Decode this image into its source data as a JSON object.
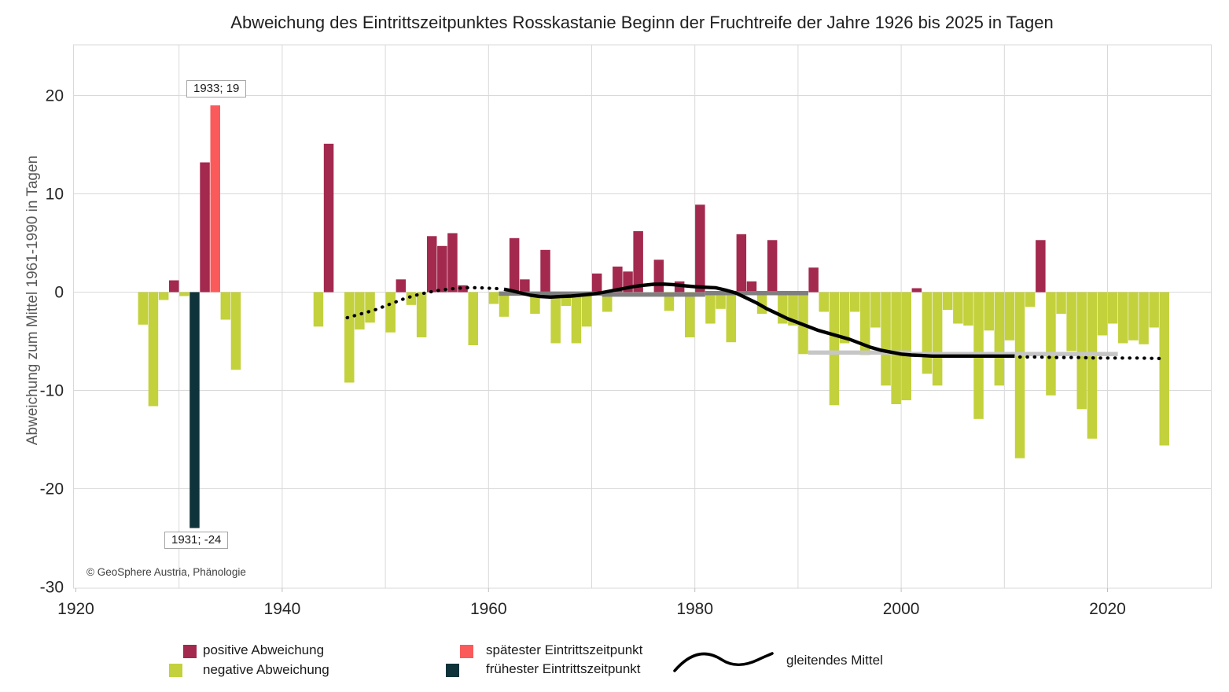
{
  "header": {
    "title": "Abweichung des Eintrittszeitpunktes Rosskastanie Beginn der Fruchtreife der Jahre 1926 bis 2025 in Tagen"
  },
  "copyright": "© GeoSphere Austria, Phänologie",
  "colors": {
    "positive": "#a3294f",
    "negative": "#c3d13d",
    "latest": "#fa5a5a",
    "earliest": "#0f333a",
    "grid": "#d9d9d9",
    "tick": "#bfbfbf",
    "axis_text": "#262626",
    "ma_line": "#000000",
    "decade_dark": "#7f7f7f",
    "decade_light": "#c6c6c6"
  },
  "legend": {
    "items": [
      {
        "label": "positive Abweichung",
        "swatch": "#a3294f"
      },
      {
        "label": "negative Abweichung",
        "swatch": "#c3d13d"
      },
      {
        "label": "spätester Eintrittszeitpunkt",
        "swatch": "#fa5a5a"
      },
      {
        "label": "frühester Eintrittszeitpunkt",
        "swatch": "#0f333a"
      },
      {
        "label": "gleitendes Mittel",
        "swatch": "wave-line"
      }
    ]
  },
  "chart_data": {
    "type": "bar",
    "title": "Abweichung des Eintrittszeitpunktes Rosskastanie Beginn der Fruchtreife der Jahre 1926 bis 2025 in Tagen",
    "xlabel": "",
    "ylabel": "Abweichung zum Mittel 1961-1990 in Tagen",
    "ylim": [
      -30.2,
      25.2
    ],
    "xlim": [
      1919.7,
      2030
    ],
    "grid": true,
    "legend_position": "bottom",
    "x_ticks": [
      1920,
      1940,
      1960,
      1980,
      2000,
      2020
    ],
    "x_gridlines": [
      1930,
      1940,
      1950,
      1960,
      1970,
      1980,
      1990,
      2000,
      2010,
      2020
    ],
    "y_ticks": [
      20,
      10,
      0,
      -10,
      -20,
      -30
    ],
    "bars": [
      [
        1926,
        -3.3
      ],
      [
        1927,
        -11.6
      ],
      [
        1928,
        -0.8
      ],
      [
        1929,
        1.2
      ],
      [
        1930,
        -0.4
      ],
      [
        1931,
        -24
      ],
      [
        1932,
        13.2
      ],
      [
        1933,
        19
      ],
      [
        1934,
        -2.8
      ],
      [
        1935,
        -7.9
      ],
      [
        1936,
        null
      ],
      [
        1937,
        null
      ],
      [
        1938,
        null
      ],
      [
        1939,
        null
      ],
      [
        1940,
        null
      ],
      [
        1941,
        null
      ],
      [
        1942,
        null
      ],
      [
        1943,
        -3.5
      ],
      [
        1944,
        15.1
      ],
      [
        1945,
        null
      ],
      [
        1946,
        -9.2
      ],
      [
        1947,
        -3.8
      ],
      [
        1948,
        -3.1
      ],
      [
        1949,
        null
      ],
      [
        1950,
        -4.1
      ],
      [
        1951,
        1.3
      ],
      [
        1952,
        -1.3
      ],
      [
        1953,
        -4.6
      ],
      [
        1954,
        5.7
      ],
      [
        1955,
        4.7
      ],
      [
        1956,
        6.0
      ],
      [
        1957,
        0.7
      ],
      [
        1958,
        -5.4
      ],
      [
        1959,
        null
      ],
      [
        1960,
        -1.2
      ],
      [
        1961,
        -2.5
      ],
      [
        1962,
        5.5
      ],
      [
        1963,
        1.3
      ],
      [
        1964,
        -2.2
      ],
      [
        1965,
        4.3
      ],
      [
        1966,
        -5.2
      ],
      [
        1967,
        -1.4
      ],
      [
        1968,
        -5.2
      ],
      [
        1969,
        -3.5
      ],
      [
        1970,
        1.9
      ],
      [
        1971,
        -2.0
      ],
      [
        1972,
        2.6
      ],
      [
        1973,
        2.1
      ],
      [
        1974,
        6.2
      ],
      [
        1975,
        null
      ],
      [
        1976,
        3.3
      ],
      [
        1977,
        -1.9
      ],
      [
        1978,
        1.1
      ],
      [
        1979,
        -4.6
      ],
      [
        1980,
        8.9
      ],
      [
        1981,
        -3.2
      ],
      [
        1982,
        -1.7
      ],
      [
        1983,
        -5.1
      ],
      [
        1984,
        5.9
      ],
      [
        1985,
        1.1
      ],
      [
        1986,
        -2.2
      ],
      [
        1987,
        5.3
      ],
      [
        1988,
        -3.2
      ],
      [
        1989,
        -3.4
      ],
      [
        1990,
        -6.3
      ],
      [
        1991,
        2.5
      ],
      [
        1992,
        -2.0
      ],
      [
        1993,
        -11.5
      ],
      [
        1994,
        -5.2
      ],
      [
        1995,
        -2.0
      ],
      [
        1996,
        -6.4
      ],
      [
        1997,
        -3.6
      ],
      [
        1998,
        -9.5
      ],
      [
        1999,
        -11.4
      ],
      [
        2000,
        -11.0
      ],
      [
        2001,
        0.4
      ],
      [
        2002,
        -8.3
      ],
      [
        2003,
        -9.5
      ],
      [
        2004,
        -1.8
      ],
      [
        2005,
        -3.2
      ],
      [
        2006,
        -3.4
      ],
      [
        2007,
        -12.9
      ],
      [
        2008,
        -3.9
      ],
      [
        2009,
        -9.5
      ],
      [
        2010,
        -4.9
      ],
      [
        2011,
        -16.9
      ],
      [
        2012,
        -1.5
      ],
      [
        2013,
        5.3
      ],
      [
        2014,
        -10.5
      ],
      [
        2015,
        -2.2
      ],
      [
        2016,
        -6.0
      ],
      [
        2017,
        -11.9
      ],
      [
        2018,
        -14.9
      ],
      [
        2019,
        -4.4
      ],
      [
        2020,
        -3.2
      ],
      [
        2021,
        -5.2
      ],
      [
        2022,
        -4.9
      ],
      [
        2023,
        -5.3
      ],
      [
        2024,
        -3.6
      ],
      [
        2025,
        -15.6
      ]
    ],
    "special": {
      "latest_year": 1933,
      "latest_value": 19,
      "latest_label": "1933; 19",
      "earliest_year": 1931,
      "earliest_value": -24,
      "earliest_label": "1931; -24"
    },
    "moving_average": {
      "dotted_pre": [
        [
          1946.3,
          -2.6
        ],
        [
          1947,
          -2.4
        ],
        [
          1948,
          -2.1
        ],
        [
          1949,
          -1.8
        ],
        [
          1950,
          -1.4
        ],
        [
          1951,
          -1.0
        ],
        [
          1952,
          -0.6
        ],
        [
          1953,
          -0.3
        ],
        [
          1954,
          -0.05
        ],
        [
          1955,
          0.15
        ],
        [
          1956,
          0.3
        ],
        [
          1957,
          0.4
        ],
        [
          1958,
          0.45
        ],
        [
          1959,
          0.45
        ],
        [
          1960,
          0.4
        ],
        [
          1961,
          0.35
        ]
      ],
      "solid": [
        [
          1961.5,
          0.3
        ],
        [
          1962,
          0.2
        ],
        [
          1963,
          -0.05
        ],
        [
          1964,
          -0.3
        ],
        [
          1965,
          -0.45
        ],
        [
          1966,
          -0.5
        ],
        [
          1967,
          -0.45
        ],
        [
          1968,
          -0.4
        ],
        [
          1969,
          -0.3
        ],
        [
          1970,
          -0.2
        ],
        [
          1971,
          -0.05
        ],
        [
          1972,
          0.15
        ],
        [
          1973,
          0.35
        ],
        [
          1974,
          0.55
        ],
        [
          1975,
          0.7
        ],
        [
          1976,
          0.8
        ],
        [
          1977,
          0.82
        ],
        [
          1978,
          0.75
        ],
        [
          1979,
          0.65
        ],
        [
          1980,
          0.55
        ],
        [
          1981,
          0.5
        ],
        [
          1982,
          0.45
        ],
        [
          1983,
          0.2
        ],
        [
          1984,
          -0.1
        ],
        [
          1985,
          -0.6
        ],
        [
          1986,
          -1.1
        ],
        [
          1987,
          -1.7
        ],
        [
          1988,
          -2.2
        ],
        [
          1989,
          -2.7
        ],
        [
          1990,
          -3.1
        ],
        [
          1991,
          -3.5
        ],
        [
          1992,
          -3.9
        ],
        [
          1993,
          -4.2
        ],
        [
          1994,
          -4.5
        ],
        [
          1995,
          -4.8
        ],
        [
          1996,
          -5.2
        ],
        [
          1997,
          -5.6
        ],
        [
          1998,
          -5.9
        ],
        [
          1999,
          -6.1
        ],
        [
          2000,
          -6.3
        ],
        [
          2001,
          -6.4
        ],
        [
          2002,
          -6.45
        ],
        [
          2003,
          -6.5
        ],
        [
          2004,
          -6.5
        ],
        [
          2005,
          -6.5
        ],
        [
          2006,
          -6.5
        ],
        [
          2007,
          -6.5
        ],
        [
          2008,
          -6.5
        ],
        [
          2009,
          -6.5
        ],
        [
          2010,
          -6.5
        ],
        [
          2011,
          -6.5
        ]
      ],
      "dotted_post": [
        [
          2011.5,
          -6.6
        ],
        [
          2013,
          -6.6
        ],
        [
          2015,
          -6.65
        ],
        [
          2017,
          -6.65
        ],
        [
          2019,
          -6.7
        ],
        [
          2021,
          -6.7
        ],
        [
          2023,
          -6.7
        ],
        [
          2025,
          -6.75
        ],
        [
          2025.6,
          -6.8
        ]
      ]
    },
    "decade_means": [
      {
        "from": 1961,
        "to": 1971,
        "value": -0.15,
        "shade": "dark"
      },
      {
        "from": 1971,
        "to": 1981,
        "value": -0.25,
        "shade": "dark"
      },
      {
        "from": 1981,
        "to": 1991,
        "value": -0.1,
        "shade": "dark"
      },
      {
        "from": 1991,
        "to": 2001,
        "value": -6.15,
        "shade": "light"
      },
      {
        "from": 2001,
        "to": 2011,
        "value": -6.3,
        "shade": "light"
      },
      {
        "from": 2011,
        "to": 2021,
        "value": -6.3,
        "shade": "light"
      }
    ]
  }
}
